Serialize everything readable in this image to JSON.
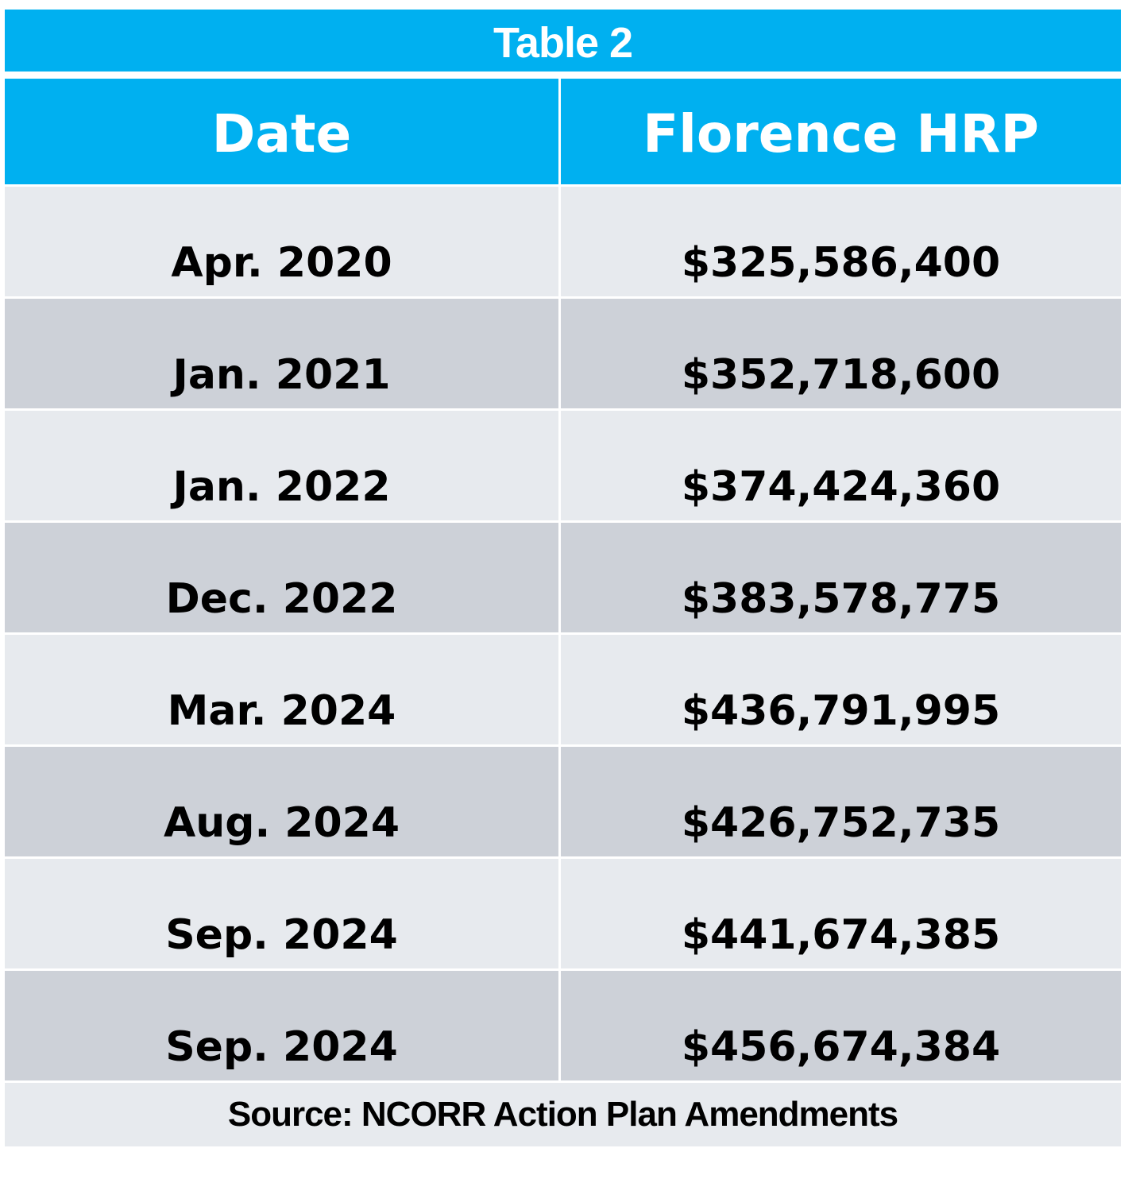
{
  "title": "Table 2",
  "columns": [
    "Date",
    "Florence HRP"
  ],
  "rows": [
    {
      "date": "Apr. 2020",
      "amount": "$325,586,400"
    },
    {
      "date": "Jan. 2021",
      "amount": "$352,718,600"
    },
    {
      "date": "Jan. 2022",
      "amount": "$374,424,360"
    },
    {
      "date": "Dec. 2022",
      "amount": "$383,578,775"
    },
    {
      "date": "Mar. 2024",
      "amount": "$436,791,995"
    },
    {
      "date": "Aug. 2024",
      "amount": "$426,752,735"
    },
    {
      "date": "Sep. 2024",
      "amount": "$441,674,385"
    },
    {
      "date": "Sep. 2024",
      "amount": "$456,674,384"
    }
  ],
  "source": "Source: NCORR Action Plan Amendments",
  "colors": {
    "header": "#00b0f0",
    "row_light": "#e7eaee",
    "row_dark": "#cdd1d8"
  }
}
